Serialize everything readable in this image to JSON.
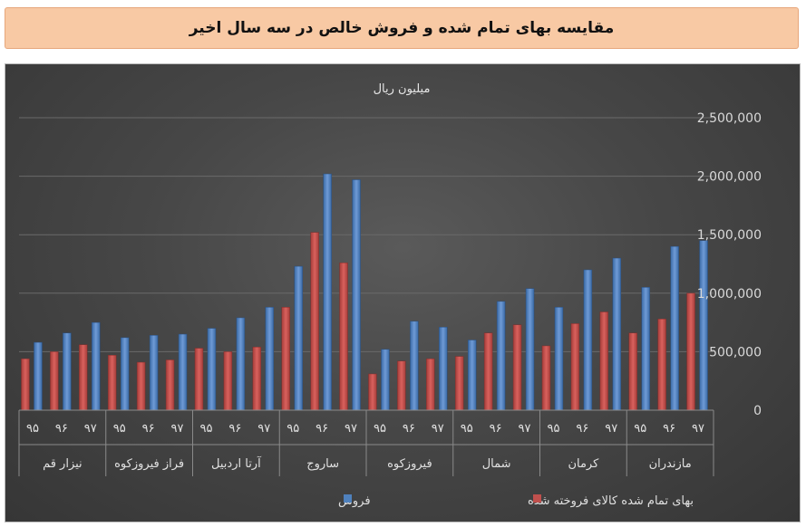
{
  "header": {
    "title": "مقایسه بهای تمام شده و فروش خالص در سه سال اخیر"
  },
  "chart_data": {
    "type": "bar",
    "title": "میلیون ریال",
    "ylim": [
      0,
      2500000
    ],
    "yticks": [
      "0",
      "500,000",
      "1,000,000",
      "1,500,000",
      "2,000,000",
      "2,500,000"
    ],
    "grid": true,
    "legend_position": "bottom",
    "groups": [
      {
        "name": "نیزار قم",
        "years": [
          "۹۵",
          "۹۶",
          "۹۷"
        ],
        "sales": [
          580000,
          660000,
          750000
        ],
        "cost": [
          440000,
          500000,
          560000
        ]
      },
      {
        "name": "فراز فیروزکوه",
        "years": [
          "۹۵",
          "۹۶",
          "۹۷"
        ],
        "sales": [
          620000,
          640000,
          650000
        ],
        "cost": [
          470000,
          410000,
          430000
        ]
      },
      {
        "name": "آرتا اردبیل",
        "years": [
          "۹۵",
          "۹۶",
          "۹۷"
        ],
        "sales": [
          700000,
          790000,
          880000
        ],
        "cost": [
          530000,
          500000,
          540000
        ]
      },
      {
        "name": "ساروج",
        "years": [
          "۹۵",
          "۹۶",
          "۹۷"
        ],
        "sales": [
          1230000,
          2020000,
          1970000
        ],
        "cost": [
          880000,
          1520000,
          1260000
        ]
      },
      {
        "name": "فیروزکوه",
        "years": [
          "۹۵",
          "۹۶",
          "۹۷"
        ],
        "sales": [
          520000,
          760000,
          710000
        ],
        "cost": [
          310000,
          420000,
          440000
        ]
      },
      {
        "name": "شمال",
        "years": [
          "۹۵",
          "۹۶",
          "۹۷"
        ],
        "sales": [
          600000,
          930000,
          1040000
        ],
        "cost": [
          460000,
          660000,
          730000
        ]
      },
      {
        "name": "کرمان",
        "years": [
          "۹۵",
          "۹۶",
          "۹۷"
        ],
        "sales": [
          880000,
          1200000,
          1300000
        ],
        "cost": [
          550000,
          740000,
          840000
        ]
      },
      {
        "name": "مازندران",
        "years": [
          "۹۵",
          "۹۶",
          "۹۷"
        ],
        "sales": [
          1050000,
          1400000,
          1450000
        ],
        "cost": [
          660000,
          780000,
          1000000
        ]
      }
    ],
    "series": [
      {
        "name": "فروش",
        "key": "sales",
        "color": "#4f81bd"
      },
      {
        "name": "بهای تمام شده کالای فروخته شده",
        "key": "cost",
        "color": "#c0504d"
      }
    ]
  }
}
